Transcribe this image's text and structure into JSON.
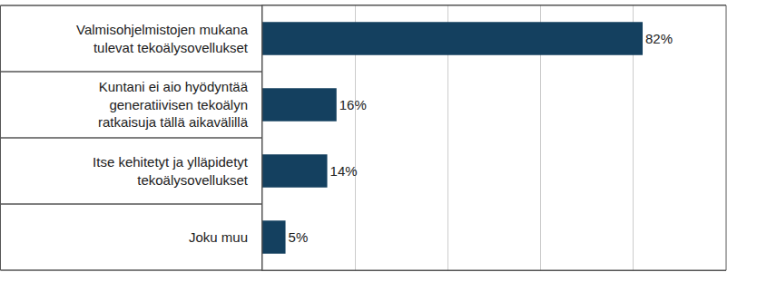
{
  "chart_data": {
    "type": "bar",
    "orientation": "horizontal",
    "categories": [
      "Valmisohjelmistojen mukana tulevat tekoälysovellukset",
      "Kuntani ei aio hyödyntää generatiivisen tekoälyn ratkaisuja tällä aikavälillä",
      "Itse kehitetyt ja ylläpidetyt tekoälysovellukset",
      "Joku muu"
    ],
    "values": [
      82,
      16,
      14,
      5
    ],
    "value_labels": [
      "82%",
      "16%",
      "14%",
      "5%"
    ],
    "color": "#14405f",
    "xlim": [
      0,
      100
    ],
    "xticks": [
      0,
      20,
      40,
      60,
      80,
      100
    ],
    "grid": true,
    "data_labels": true,
    "tick_labels": "y"
  }
}
